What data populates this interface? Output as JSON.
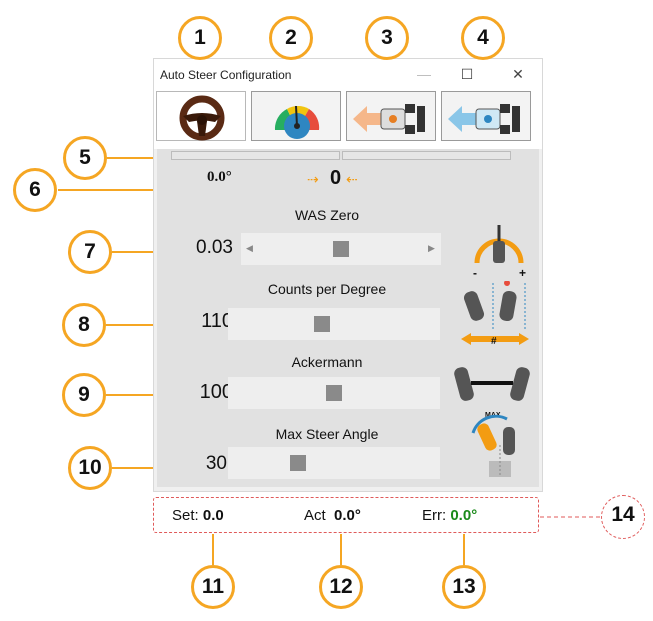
{
  "window": {
    "title": "Auto Steer Configuration",
    "minimize_glyph": "—",
    "maximize_glyph": "☐",
    "close_glyph": "✕"
  },
  "tabs": [
    {
      "name": "steering-wheel",
      "active": true
    },
    {
      "name": "gauge",
      "active": false
    },
    {
      "name": "tractor-left",
      "active": false
    },
    {
      "name": "tractor-right",
      "active": false
    }
  ],
  "top": {
    "angle_value": "0.0°",
    "center_value": "0",
    "left_progress": 0,
    "right_progress": 0
  },
  "sliders": [
    {
      "label": "WAS Zero",
      "value": "0.03",
      "position": 0.5,
      "has_arrows": true
    },
    {
      "label": "Counts per Degree",
      "value": "110",
      "position": 0.45,
      "has_arrows": false
    },
    {
      "label": "Ackermann",
      "value": "100",
      "position": 0.5,
      "has_arrows": false
    },
    {
      "label": "Max Steer Angle",
      "value": "30",
      "position": 0.35,
      "has_arrows": false
    }
  ],
  "status": {
    "set_label": "Set:",
    "set_value": "0.0",
    "act_label": "Act",
    "act_value": "0.0°",
    "err_label": "Err:",
    "err_value": "0.0°"
  },
  "icons": {
    "ackermann_sign": "#",
    "max_label": "MAX"
  },
  "callouts": [
    "1",
    "2",
    "3",
    "4",
    "5",
    "6",
    "7",
    "8",
    "9",
    "10",
    "11",
    "12",
    "13",
    "14"
  ],
  "colors": {
    "callout_border": "#f5a623",
    "error_green": "#1a8a1a",
    "accent_orange": "#f39c12",
    "dashed_red": "#e05a5a"
  }
}
